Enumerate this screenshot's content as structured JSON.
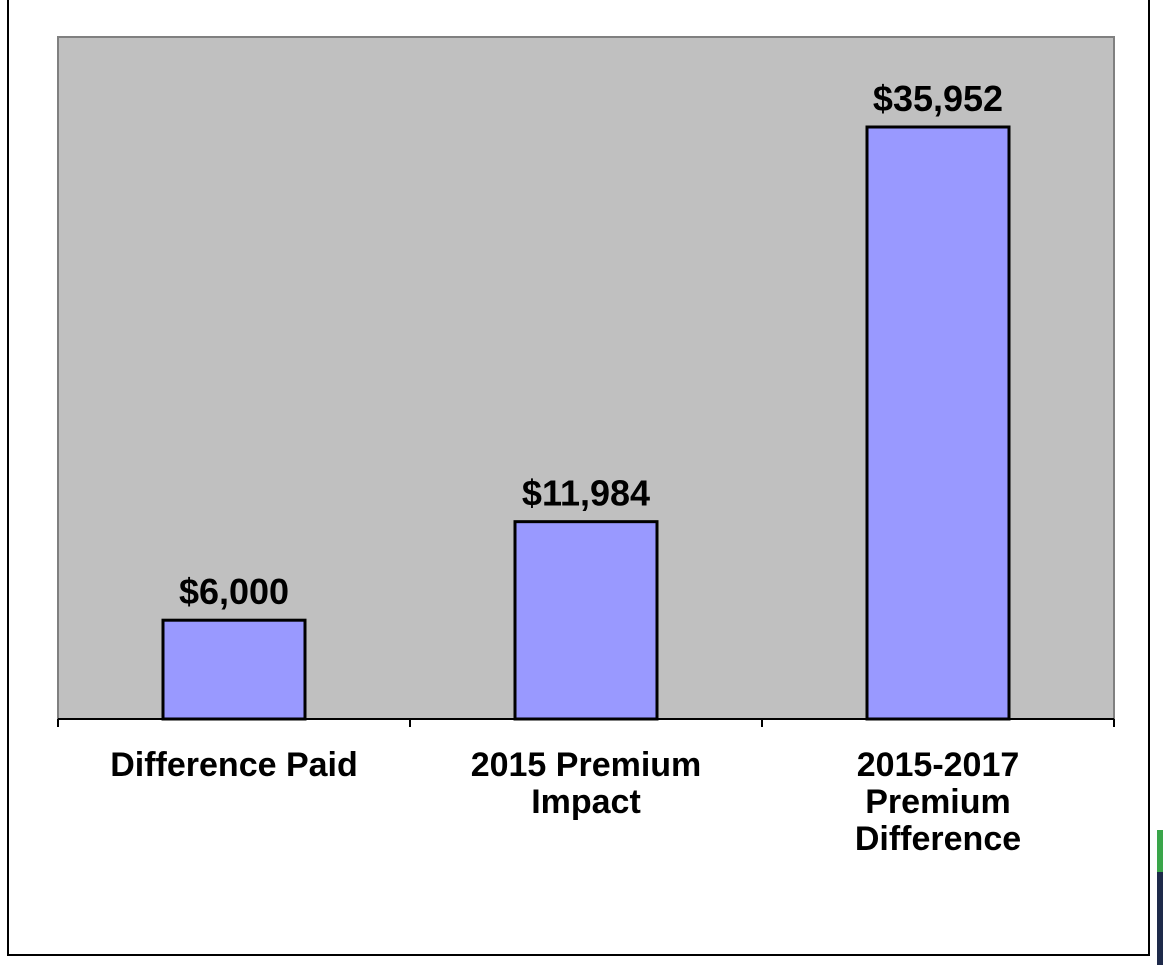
{
  "chart_data": {
    "type": "bar",
    "title": "",
    "xlabel": "",
    "ylabel": "",
    "categories": [
      [
        "Difference Paid"
      ],
      [
        "2015 Premium",
        "Impact"
      ],
      [
        "2015-2017",
        "Premium",
        "Difference"
      ]
    ],
    "values": [
      6000,
      11984,
      35952
    ],
    "data_labels": [
      "$6,000",
      "$11,984",
      "$35,952"
    ],
    "ylim": [
      0,
      40000
    ],
    "grid": false,
    "legend": "none",
    "colors": {
      "bar_fill": "#9999ff",
      "bar_stroke": "#000000",
      "plot_background": "#c0c0c0",
      "plot_border": "#808080",
      "axis": "#000000"
    }
  }
}
